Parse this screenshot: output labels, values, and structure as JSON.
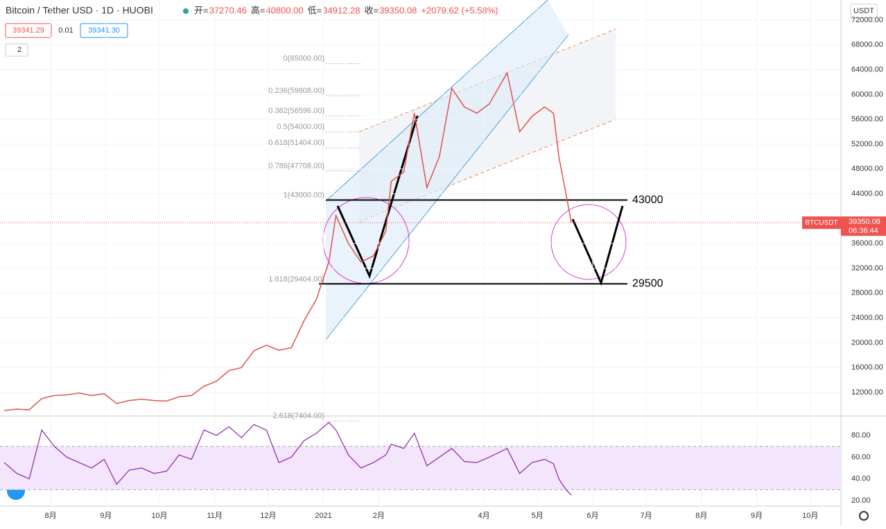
{
  "header": {
    "symbol": "Bitcoin / Tether USD · 1D · HUOBI",
    "ohlc": [
      {
        "label": "开=",
        "value": "37270.46"
      },
      {
        "label": "高=",
        "value": "40800.00"
      },
      {
        "label": "低=",
        "value": "34912.28"
      },
      {
        "label": "收=",
        "value": "39350.08"
      },
      {
        "label": "",
        "value": "+2079.62 (+5.58%)"
      }
    ],
    "bid": "39341.29",
    "spread": "0.01",
    "ask": "39341.30",
    "indicator_count": "2"
  },
  "price_axis": {
    "currency": "USDT",
    "tag_symbol": "BTCUSDT",
    "tag_price": "39350.08",
    "tag_countdown": "06:36:44"
  },
  "chart_data": [
    {
      "type": "line",
      "color": "#e0524c",
      "xlim": [
        2.6,
        474.2
      ],
      "ylim": [
        8200,
        75240
      ],
      "x": [
        5,
        12,
        19,
        26,
        33,
        40,
        47,
        54,
        61,
        68,
        75,
        82,
        89,
        96,
        103,
        110,
        117,
        124,
        131,
        138,
        145,
        152,
        159,
        166,
        173,
        180,
        187,
        191,
        198,
        205,
        212,
        219,
        222,
        229,
        235,
        242,
        249,
        256,
        263,
        270,
        277,
        287,
        294,
        301,
        308,
        313,
        316,
        320,
        323
      ],
      "series": [
        {
          "name": "BTCUSDT",
          "values": [
            9100,
            9300,
            9200,
            11000,
            11500,
            11600,
            11900,
            11500,
            11800,
            10200,
            10700,
            10900,
            10700,
            10600,
            11300,
            11500,
            13000,
            13800,
            15500,
            16000,
            18700,
            19600,
            18800,
            19200,
            23500,
            27000,
            33000,
            40500,
            36000,
            33000,
            34000,
            38000,
            46000,
            47500,
            57000,
            45000,
            50000,
            61000,
            58000,
            57000,
            58500,
            63500,
            54000,
            56500,
            58000,
            57000,
            50000,
            44000,
            39350
          ]
        }
      ],
      "last_price": 39350.08,
      "yticks": [
        {
          "value": 72000,
          "label": "72000.00"
        },
        {
          "value": 68000,
          "label": "68000.00"
        },
        {
          "value": 64000,
          "label": "64000.00"
        },
        {
          "value": 60000,
          "label": "60000.00"
        },
        {
          "value": 56000,
          "label": "56000.00"
        },
        {
          "value": 52000,
          "label": "52000.00"
        },
        {
          "value": 48000,
          "label": "48000.00"
        },
        {
          "value": 44000,
          "label": "44000.00"
        },
        {
          "value": 36000,
          "label": "36000.00"
        },
        {
          "value": 32000,
          "label": "32000.00"
        },
        {
          "value": 28000,
          "label": "28000.00"
        },
        {
          "value": 24000,
          "label": "24000.00"
        },
        {
          "value": 20000,
          "label": "20000.00"
        },
        {
          "value": 16000,
          "label": "16000.00"
        },
        {
          "value": 12000,
          "label": "12000.00"
        }
      ],
      "xticks": [
        {
          "value": 31,
          "label": "8月"
        },
        {
          "value": 62,
          "label": "9月"
        },
        {
          "value": 92,
          "label": "10月"
        },
        {
          "value": 123,
          "label": "11月"
        },
        {
          "value": 153,
          "label": "12月"
        },
        {
          "value": 184,
          "label": "2021"
        },
        {
          "value": 215,
          "label": "2月"
        },
        {
          "value": 274,
          "label": "4月"
        },
        {
          "value": 304,
          "label": "5月"
        },
        {
          "value": 335,
          "label": "6月"
        },
        {
          "value": 365,
          "label": "7月"
        },
        {
          "value": 396,
          "label": "8月"
        },
        {
          "value": 427,
          "label": "9月"
        },
        {
          "value": 457,
          "label": "10月"
        }
      ],
      "fib_levels": [
        {
          "value": 65000,
          "label": "0(65000.00)"
        },
        {
          "value": 59808,
          "label": "0.236(59808.00)"
        },
        {
          "value": 56596,
          "label": "0.382(56596.00)"
        },
        {
          "value": 54000,
          "label": "0.5(54000.00)"
        },
        {
          "value": 51404,
          "label": "0.618(51404.00)"
        },
        {
          "value": 47708,
          "label": "0.786(47708.00)"
        },
        {
          "value": 43000,
          "label": "1(43000.00)"
        },
        {
          "value": 29404,
          "label": "1.618(29404.00)"
        },
        {
          "value": 7404,
          "label": "2.618(7404.00)"
        }
      ],
      "levels": [
        43000,
        29500
      ]
    },
    {
      "type": "rsi",
      "color": "#8e24aa",
      "xlim": [
        2.6,
        474.2
      ],
      "ylim": [
        14.9,
        97.9
      ],
      "band": [
        30,
        70
      ],
      "x": [
        5,
        12,
        19,
        26,
        33,
        40,
        47,
        54,
        61,
        68,
        75,
        82,
        89,
        96,
        103,
        110,
        117,
        124,
        131,
        138,
        145,
        152,
        159,
        166,
        173,
        180,
        187,
        191,
        198,
        205,
        212,
        219,
        222,
        229,
        235,
        242,
        249,
        256,
        263,
        270,
        277,
        287,
        294,
        301,
        308,
        313,
        316,
        320,
        323
      ],
      "values": [
        55,
        45,
        40,
        85,
        70,
        60,
        55,
        50,
        58,
        35,
        48,
        50,
        45,
        47,
        62,
        58,
        85,
        80,
        88,
        78,
        90,
        85,
        55,
        60,
        75,
        82,
        92,
        85,
        62,
        50,
        55,
        62,
        72,
        68,
        82,
        52,
        60,
        68,
        56,
        55,
        60,
        68,
        45,
        55,
        58,
        54,
        40,
        30,
        25
      ],
      "yticks": [
        {
          "value": 80,
          "label": "80.00"
        },
        {
          "value": 60,
          "label": "60.00"
        },
        {
          "value": 40,
          "label": "40.00"
        },
        {
          "value": 20,
          "label": "20.00"
        }
      ]
    }
  ]
}
